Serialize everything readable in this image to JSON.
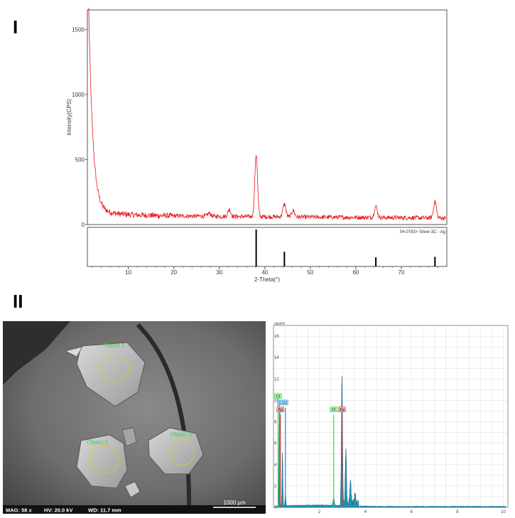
{
  "panels": {
    "top_letter": "I",
    "bottom_letter": "II"
  },
  "chart_data": [
    {
      "type": "line",
      "ylabel": "Intensity(CPS)",
      "xlabel": "2-Theta(°)",
      "xlim": [
        1,
        80
      ],
      "ylim": [
        0,
        1650
      ],
      "yticks": [
        0,
        500,
        1000,
        1500
      ],
      "xticks": [
        10,
        20,
        30,
        40,
        50,
        60,
        70
      ],
      "series_color": "#e8161a",
      "background_level": 70,
      "peaks": [
        {
          "x": 27.8,
          "y": 95
        },
        {
          "x": 32.2,
          "y": 125
        },
        {
          "x": 38.1,
          "y": 550
        },
        {
          "x": 44.3,
          "y": 170
        },
        {
          "x": 46.2,
          "y": 120
        },
        {
          "x": 64.4,
          "y": 155
        },
        {
          "x": 77.4,
          "y": 195
        }
      ],
      "reference": {
        "label": "04-0783> Silver-3C - Ag",
        "lines": [
          {
            "x": 38.1,
            "rel": 100
          },
          {
            "x": 44.3,
            "rel": 40
          },
          {
            "x": 64.4,
            "rel": 25
          },
          {
            "x": 77.4,
            "rel": 26
          }
        ]
      }
    },
    {
      "type": "area",
      "ylabel": "cps/eV",
      "xlim": [
        0,
        10.2
      ],
      "ylim": [
        0,
        17
      ],
      "yticks": [
        0,
        2,
        4,
        6,
        8,
        10,
        12,
        14,
        16
      ],
      "xticks": [
        2,
        4,
        6,
        8,
        10
      ],
      "fill_color": "#1f93b5",
      "peaks": [
        {
          "x": 0.26,
          "y": 9.6
        },
        {
          "x": 0.39,
          "y": 5.0
        },
        {
          "x": 0.52,
          "y": 1.2
        },
        {
          "x": 2.62,
          "y": 0.8
        },
        {
          "x": 2.98,
          "y": 11.6
        },
        {
          "x": 3.15,
          "y": 5.2
        },
        {
          "x": 3.35,
          "y": 2.3
        },
        {
          "x": 3.55,
          "y": 0.9
        }
      ],
      "markers": [
        {
          "label": "Cl",
          "x": 0.2,
          "color": "#3dd64a",
          "fill": "#9ff0a0",
          "row": 0
        },
        {
          "label": "C",
          "x": 0.28,
          "color": "#1e88e5",
          "fill": "#a8d8ff",
          "row": 1
        },
        {
          "label": "O",
          "x": 0.52,
          "color": "#1e88e5",
          "fill": "#a8d8ff",
          "row": 1
        },
        {
          "label": "Ag",
          "x": 0.3,
          "color": "#e53935",
          "fill": "#f7a8a8",
          "row": 2
        },
        {
          "label": "Cl",
          "x": 2.62,
          "color": "#3dd64a",
          "fill": "#9ff0a0",
          "row": 2
        },
        {
          "label": "Ag",
          "x": 2.98,
          "color": "#e53935",
          "fill": "#f7a8a8",
          "row": 2
        }
      ]
    }
  ],
  "sem": {
    "labels": [
      "Object 1",
      "Object 2",
      "Object 3"
    ],
    "info": {
      "mag": "MAG: 58 x",
      "hv": "HV: 20.0 kV",
      "wd": "WD: 11.7 mm"
    },
    "scale_label": "1000 µm"
  }
}
